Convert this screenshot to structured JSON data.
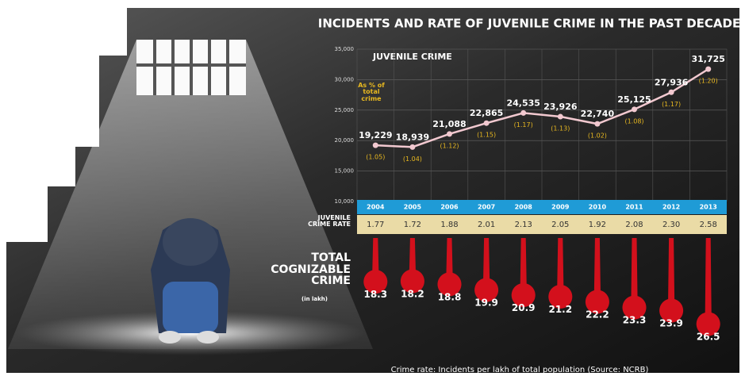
{
  "chart_data": {
    "type": "line",
    "title": "INCIDENTS AND RATE OF JUVENILE CRIME IN THE PAST DECADE",
    "series_label": "JUVENILE CRIME",
    "annotation": "As % of total crime",
    "categories": [
      "2004",
      "2005",
      "2006",
      "2007",
      "2008",
      "2009",
      "2010",
      "2011",
      "2012",
      "2013"
    ],
    "values": [
      19229,
      18939,
      21088,
      22865,
      24535,
      23926,
      22740,
      25125,
      27936,
      31725
    ],
    "value_labels": [
      "19,229",
      "18,939",
      "21,088",
      "22,865",
      "24,535",
      "23,926",
      "22,740",
      "25,125",
      "27,936",
      "31,725"
    ],
    "share_labels": [
      "(1.05)",
      "(1.04)",
      "(1.12)",
      "(1.15)",
      "(1.17)",
      "(1.13)",
      "(1.02)",
      "(1.08)",
      "(1.17)",
      "(1.20)"
    ],
    "color": "#f2c9d0",
    "ylim": [
      10000,
      35000
    ],
    "yticks": [
      {
        "value": 10000,
        "label": "10,000"
      },
      {
        "value": 15000,
        "label": "15,000"
      },
      {
        "value": 20000,
        "label": "20,000"
      },
      {
        "value": 25000,
        "label": "25,000"
      },
      {
        "value": 30000,
        "label": "30,000"
      },
      {
        "value": 35000,
        "label": "35,000"
      }
    ],
    "grid": true,
    "crime_rate": {
      "label": "JUVENILE CRIME RATE",
      "values": [
        1.77,
        1.72,
        1.88,
        2.01,
        2.13,
        2.05,
        1.92,
        2.08,
        2.3,
        2.58
      ],
      "value_labels": [
        "1.77",
        "1.72",
        "1.88",
        "2.01",
        "2.13",
        "2.05",
        "1.92",
        "2.08",
        "2.30",
        "2.58"
      ]
    },
    "total_crime": {
      "label": "TOTAL COGNIZABLE CRIME",
      "unit": "(in lakh)",
      "color": "#d3101c",
      "values": [
        18.3,
        18.2,
        18.8,
        19.9,
        20.9,
        21.2,
        22.2,
        23.3,
        23.9,
        26.5
      ]
    },
    "footnote": "Crime rate: Incidents per lakh of total population (Source: NCRB)"
  }
}
